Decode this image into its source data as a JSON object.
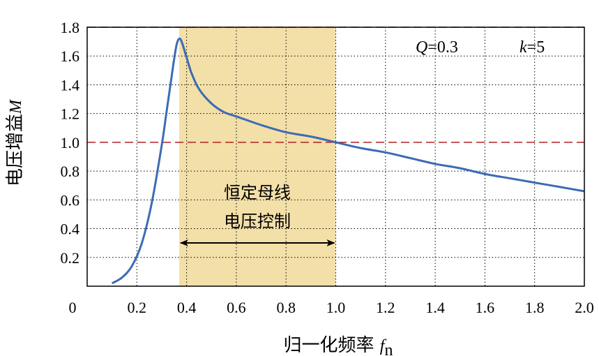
{
  "chart_data": {
    "type": "line",
    "xlabel": "归一化频率",
    "xlabel_symbol": "f",
    "xlabel_subscript": "n",
    "ylabel": "电压增益",
    "ylabel_symbol": "M",
    "xlim": [
      0,
      2.0
    ],
    "ylim": [
      0,
      1.8
    ],
    "x_ticks": [
      "0",
      "0.2",
      "0.4",
      "0.6",
      "0.8",
      "1.0",
      "1.2",
      "1.4",
      "1.6",
      "1.8",
      "2.0"
    ],
    "y_ticks": [
      "0.2",
      "0.4",
      "0.6",
      "0.8",
      "1.0",
      "1.2",
      "1.4",
      "1.6",
      "1.8"
    ],
    "grid": true,
    "params": {
      "q_symbol": "Q",
      "q_value": "=0.3",
      "k_symbol": "k",
      "k_value": "=5"
    },
    "reference_lines": [
      1.0,
      1.8
    ],
    "shaded_region": {
      "x_start": 0.37,
      "x_end": 1.0,
      "label_line1": "恒定母线",
      "label_line2": "电压控制"
    },
    "series": [
      {
        "color": "#3c6bb5",
        "points": [
          [
            0.1,
            0.02
          ],
          [
            0.14,
            0.06
          ],
          [
            0.18,
            0.14
          ],
          [
            0.22,
            0.3
          ],
          [
            0.26,
            0.58
          ],
          [
            0.3,
            0.98
          ],
          [
            0.32,
            1.22
          ],
          [
            0.34,
            1.46
          ],
          [
            0.35,
            1.58
          ],
          [
            0.36,
            1.68
          ],
          [
            0.37,
            1.72
          ],
          [
            0.38,
            1.7
          ],
          [
            0.4,
            1.59
          ],
          [
            0.42,
            1.48
          ],
          [
            0.45,
            1.37
          ],
          [
            0.5,
            1.27
          ],
          [
            0.55,
            1.21
          ],
          [
            0.6,
            1.18
          ],
          [
            0.7,
            1.12
          ],
          [
            0.8,
            1.07
          ],
          [
            0.9,
            1.04
          ],
          [
            1.0,
            1.0
          ],
          [
            1.1,
            0.96
          ],
          [
            1.2,
            0.93
          ],
          [
            1.3,
            0.89
          ],
          [
            1.4,
            0.85
          ],
          [
            1.5,
            0.82
          ],
          [
            1.6,
            0.78
          ],
          [
            1.7,
            0.75
          ],
          [
            1.8,
            0.72
          ],
          [
            1.9,
            0.69
          ],
          [
            2.0,
            0.66
          ]
        ]
      }
    ]
  }
}
